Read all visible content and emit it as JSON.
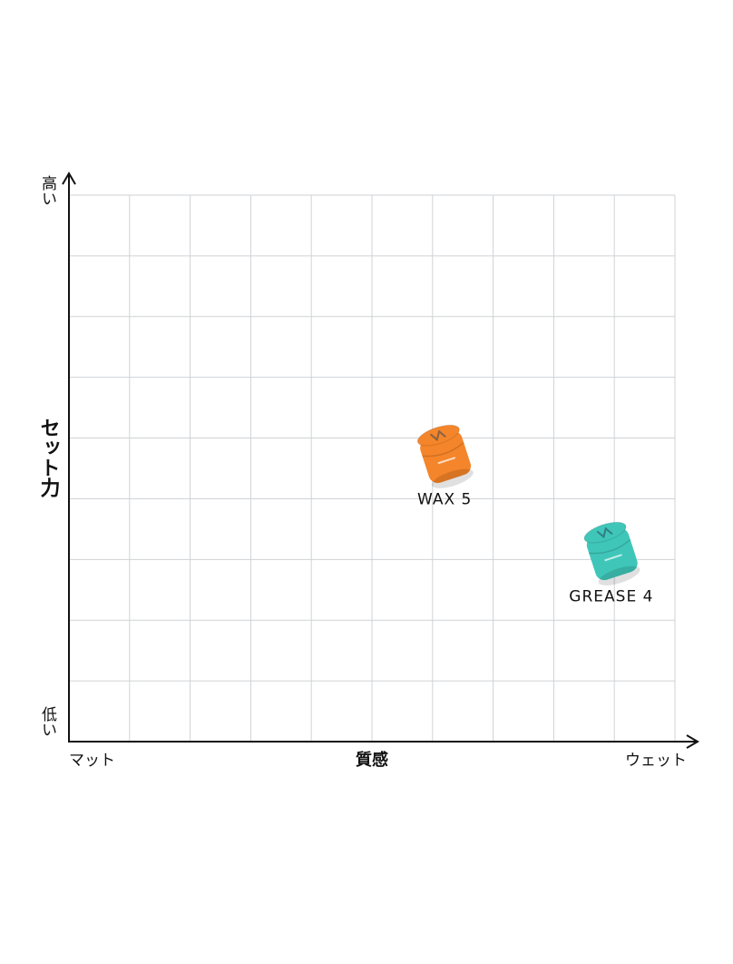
{
  "chart_data": {
    "type": "scatter",
    "title": "",
    "xlabel": "質感",
    "ylabel": "セット力",
    "x_low_label": "マット",
    "x_high_label": "ウェット",
    "y_high_label": "高い",
    "y_low_label": "低い",
    "xlim": [
      0,
      10
    ],
    "ylim": [
      0,
      9
    ],
    "grid": true,
    "points": [
      {
        "label": "WAX 5",
        "x": 6.2,
        "y": 4.7,
        "color": "#f5852a",
        "icon": "orange-wax-jar-icon"
      },
      {
        "label": "GREASE 4",
        "x": 8.95,
        "y": 3.1,
        "color": "#3fc6b9",
        "icon": "teal-grease-jar-icon"
      }
    ]
  }
}
